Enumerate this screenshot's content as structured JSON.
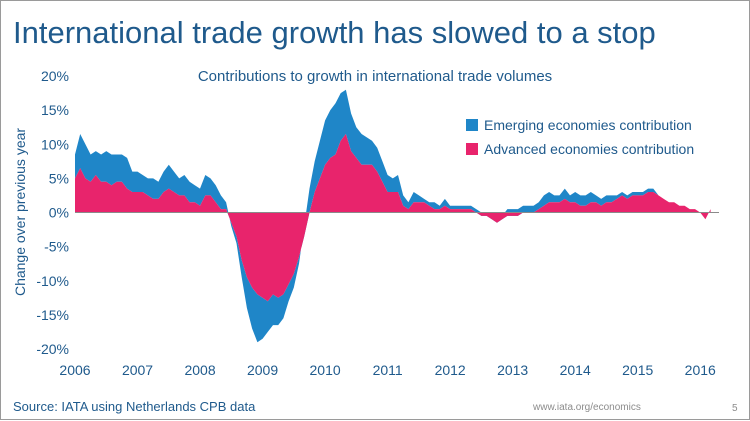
{
  "slide": {
    "headline": "International trade growth has slowed to a stop",
    "source": "Source: IATA using Netherlands CPB data",
    "website": "www.iata.org/economics",
    "page_number": "5"
  },
  "chart_data": {
    "type": "area",
    "title": "Contributions to growth in international trade volumes",
    "xlabel": "",
    "ylabel": "Change over previous year",
    "x_start": 2006.0,
    "x_step": 0.08333,
    "ylim": [
      -20,
      20
    ],
    "yticks": [
      -20,
      -15,
      -10,
      -5,
      0,
      5,
      10,
      15,
      20
    ],
    "ytick_labels": [
      "-20%",
      "-15%",
      "-10%",
      "-5%",
      "0%",
      "5%",
      "10%",
      "15%",
      "20%"
    ],
    "xticks": [
      2006,
      2007,
      2008,
      2009,
      2010,
      2011,
      2012,
      2013,
      2014,
      2015,
      2016
    ],
    "xtick_labels": [
      "2006",
      "2007",
      "2008",
      "2009",
      "2010",
      "2011",
      "2012",
      "2013",
      "2014",
      "2015",
      "2016"
    ],
    "grid": false,
    "legend_position": "top-right",
    "series": [
      {
        "name": "Emerging economies contribution",
        "color": "#1f86c8",
        "values": [
          3.5,
          5.0,
          5.0,
          4.0,
          3.5,
          4.0,
          4.5,
          4.5,
          4.0,
          4.0,
          4.5,
          3.0,
          3.0,
          2.5,
          2.5,
          3.0,
          2.5,
          3.0,
          3.5,
          3.0,
          2.5,
          3.0,
          3.0,
          2.5,
          2.5,
          3.0,
          2.5,
          2.5,
          2.0,
          1.0,
          -0.5,
          -1.0,
          -2.5,
          -4.5,
          -6.0,
          -7.0,
          -6.0,
          -4.5,
          -4.5,
          -4.0,
          -3.5,
          -2.5,
          -2.0,
          -1.0,
          1.5,
          3.5,
          4.5,
          5.5,
          6.5,
          7.0,
          7.5,
          7.0,
          6.5,
          5.5,
          4.5,
          4.5,
          4.0,
          3.5,
          3.5,
          3.0,
          2.5,
          2.0,
          2.5,
          1.5,
          1.0,
          1.5,
          1.0,
          0.5,
          0.5,
          1.0,
          0.5,
          1.0,
          0.5,
          0.5,
          0.5,
          0.5,
          0.5,
          0.5,
          0.5,
          0.5,
          0.5,
          0.5,
          0.5,
          1.0,
          1.0,
          1.0,
          1.0,
          1.0,
          1.0,
          1.0,
          1.5,
          1.5,
          1.0,
          1.0,
          1.5,
          1.0,
          1.5,
          1.5,
          1.5,
          1.5,
          1.0,
          1.0,
          1.0,
          1.0,
          0.5,
          0.5,
          0.5,
          0.5,
          0.5,
          0.5,
          0.5,
          0.5,
          0.0,
          0.0,
          0.0,
          0.0,
          0.0,
          0.0,
          0.0,
          0.0,
          0.0,
          0.0,
          0.0
        ]
      },
      {
        "name": "Advanced economies contribution",
        "color": "#e8246c",
        "values": [
          5.0,
          6.5,
          5.0,
          4.5,
          5.5,
          4.5,
          4.5,
          4.0,
          4.5,
          4.5,
          3.5,
          3.0,
          3.0,
          3.0,
          2.5,
          2.0,
          2.0,
          3.0,
          3.5,
          3.0,
          2.5,
          2.5,
          1.5,
          1.5,
          1.0,
          2.5,
          2.5,
          1.5,
          0.5,
          0.5,
          -1.5,
          -3.5,
          -7.0,
          -9.5,
          -11.0,
          -12.0,
          -12.5,
          -13.0,
          -12.0,
          -12.5,
          -12.0,
          -10.5,
          -9.0,
          -6.5,
          -3.5,
          0.0,
          3.0,
          5.0,
          7.0,
          8.0,
          8.5,
          10.5,
          11.5,
          9.0,
          8.0,
          7.0,
          7.0,
          7.0,
          6.0,
          4.5,
          3.0,
          3.0,
          3.0,
          1.0,
          0.5,
          1.5,
          1.5,
          1.5,
          1.0,
          0.5,
          0.5,
          1.0,
          0.5,
          0.5,
          0.5,
          0.5,
          0.5,
          0.0,
          -0.5,
          -0.5,
          -1.0,
          -1.5,
          -1.0,
          -0.5,
          -0.5,
          -0.5,
          0.0,
          0.0,
          0.0,
          0.5,
          1.0,
          1.5,
          1.5,
          1.5,
          2.0,
          1.5,
          1.5,
          1.0,
          1.0,
          1.5,
          1.5,
          1.0,
          1.5,
          1.5,
          2.0,
          2.5,
          2.0,
          2.5,
          2.5,
          2.5,
          3.0,
          3.0,
          2.5,
          2.0,
          1.5,
          1.5,
          1.0,
          1.0,
          0.5,
          0.5,
          0.0,
          -1.0,
          0.5
        ]
      }
    ]
  }
}
